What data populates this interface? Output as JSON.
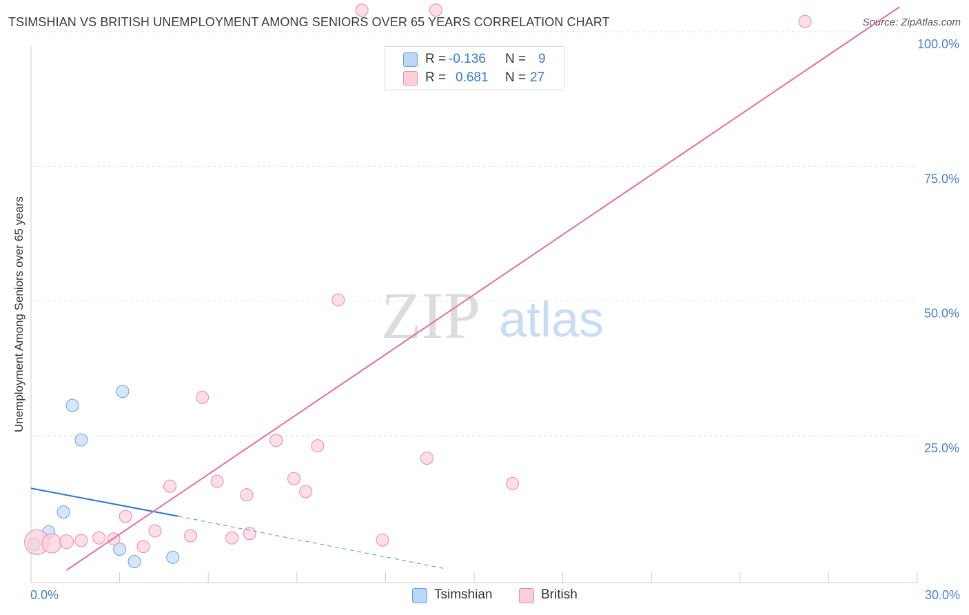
{
  "header": {
    "title": "TSIMSHIAN VS BRITISH UNEMPLOYMENT AMONG SENIORS OVER 65 YEARS CORRELATION CHART",
    "source": "Source: ZipAtlas.com"
  },
  "watermark": {
    "zip": "ZIP",
    "atlas": "atlas"
  },
  "legend": {
    "rows": [
      {
        "r_label": "R =",
        "r_value": "-0.136",
        "n_label": "N =",
        "n_value": "9",
        "color": "#a9c9f2",
        "border": "#6a9fe0"
      },
      {
        "r_label": "R =",
        "r_value": "0.681",
        "n_label": "N =",
        "n_value": "27",
        "color": "#f9c3d3",
        "border": "#e88aa8"
      }
    ]
  },
  "bottom_legend": {
    "items": [
      {
        "label": "Tsimshian",
        "color": "#bcd6f6",
        "border": "#6a9fe0"
      },
      {
        "label": "British",
        "color": "#fbd0dc",
        "border": "#e88aa8"
      }
    ]
  },
  "chart_data": {
    "type": "scatter",
    "title": "TSIMSHIAN VS BRITISH UNEMPLOYMENT AMONG SENIORS OVER 65 YEARS CORRELATION CHART",
    "xlabel": "",
    "ylabel": "Unemployment Among Seniors over 65 years",
    "xlim": [
      0,
      30
    ],
    "ylim": [
      0,
      100
    ],
    "x_tick_labels": [
      "0.0%",
      "30.0%"
    ],
    "y_tick_labels": [
      "25.0%",
      "50.0%",
      "75.0%",
      "100.0%"
    ],
    "y_ticks": [
      25,
      50,
      75,
      100
    ],
    "series": [
      {
        "name": "Tsimshian",
        "color": "#6a9fe0",
        "fill": "#c4dbf7",
        "points": [
          {
            "x": 0.1,
            "y": 4.8,
            "s": 9
          },
          {
            "x": 0.6,
            "y": 7.1,
            "s": 9
          },
          {
            "x": 1.4,
            "y": 30.6,
            "s": 9
          },
          {
            "x": 1.7,
            "y": 24.2,
            "s": 9
          },
          {
            "x": 1.1,
            "y": 10.8,
            "s": 9
          },
          {
            "x": 3.1,
            "y": 33.2,
            "s": 9
          },
          {
            "x": 3.0,
            "y": 3.9,
            "s": 9
          },
          {
            "x": 3.5,
            "y": 1.6,
            "s": 9
          },
          {
            "x": 4.8,
            "y": 2.4,
            "s": 9
          }
        ],
        "trend": {
          "x1": 0,
          "y1": 15.2,
          "x2": 5.0,
          "y2": 10.0,
          "dash_x2": 14.0,
          "dash_y2": 0.3
        }
      },
      {
        "name": "British",
        "color": "#e88aa8",
        "fill": "#fbd0dc",
        "points": [
          {
            "x": 0.2,
            "y": 5.2,
            "s": 18
          },
          {
            "x": 0.7,
            "y": 5.0,
            "s": 14
          },
          {
            "x": 1.2,
            "y": 5.3,
            "s": 10
          },
          {
            "x": 1.7,
            "y": 5.5,
            "s": 9
          },
          {
            "x": 2.3,
            "y": 6.0,
            "s": 9
          },
          {
            "x": 2.8,
            "y": 5.8,
            "s": 9
          },
          {
            "x": 3.2,
            "y": 10.0,
            "s": 9
          },
          {
            "x": 3.8,
            "y": 4.4,
            "s": 9
          },
          {
            "x": 4.2,
            "y": 7.3,
            "s": 9
          },
          {
            "x": 4.7,
            "y": 15.6,
            "s": 9
          },
          {
            "x": 5.4,
            "y": 6.4,
            "s": 9
          },
          {
            "x": 5.8,
            "y": 32.1,
            "s": 9
          },
          {
            "x": 6.3,
            "y": 16.5,
            "s": 9
          },
          {
            "x": 6.8,
            "y": 6.0,
            "s": 9
          },
          {
            "x": 7.3,
            "y": 14.0,
            "s": 9
          },
          {
            "x": 7.4,
            "y": 6.8,
            "s": 9
          },
          {
            "x": 8.3,
            "y": 24.1,
            "s": 9
          },
          {
            "x": 8.9,
            "y": 17.0,
            "s": 9
          },
          {
            "x": 9.3,
            "y": 14.6,
            "s": 9
          },
          {
            "x": 9.7,
            "y": 23.1,
            "s": 9
          },
          {
            "x": 10.4,
            "y": 50.2,
            "s": 9
          },
          {
            "x": 11.2,
            "y": 104.0,
            "s": 9
          },
          {
            "x": 11.9,
            "y": 5.6,
            "s": 9
          },
          {
            "x": 13.4,
            "y": 20.8,
            "s": 9
          },
          {
            "x": 13.7,
            "y": 104.0,
            "s": 9
          },
          {
            "x": 16.3,
            "y": 16.1,
            "s": 9
          },
          {
            "x": 26.2,
            "y": 101.9,
            "s": 9
          }
        ],
        "trend": {
          "x1": 1.2,
          "y1": 0,
          "x2": 29.4,
          "y2": 104.6
        }
      }
    ]
  }
}
